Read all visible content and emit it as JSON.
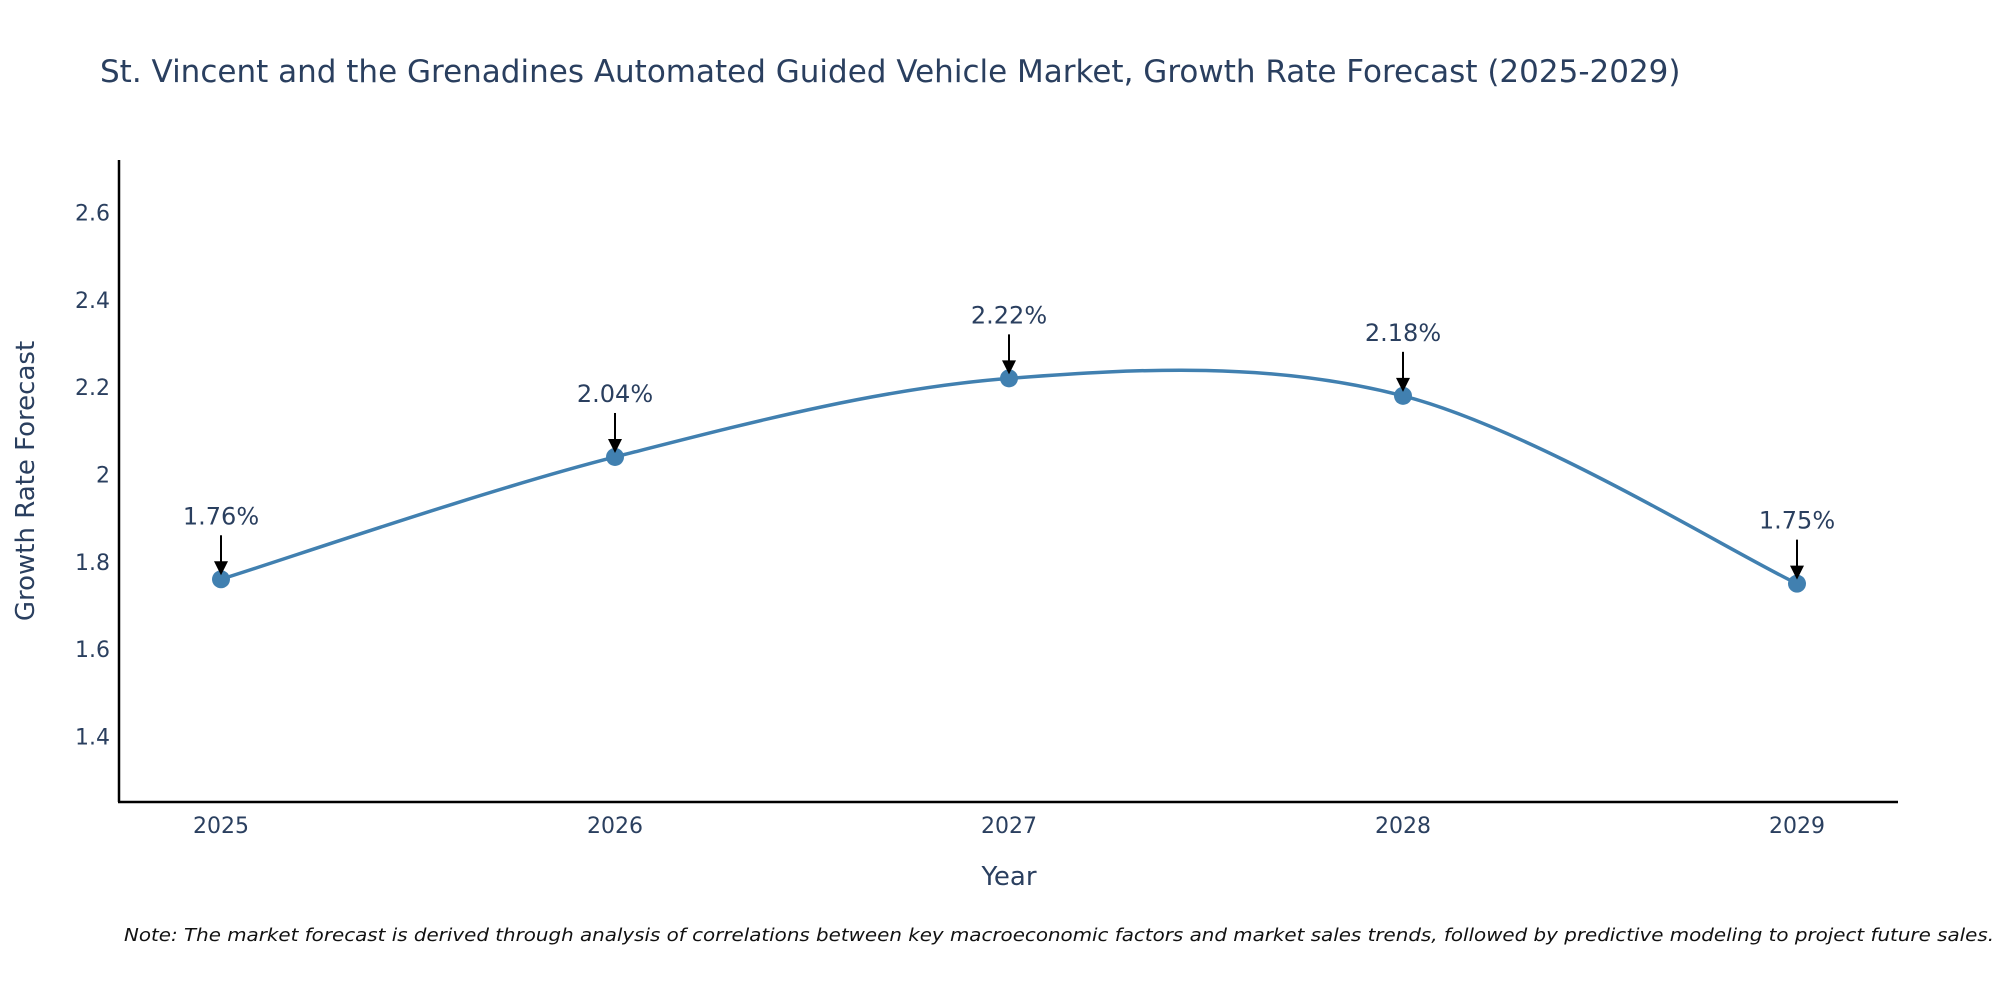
{
  "chart_data": {
    "type": "line",
    "title": "St. Vincent and the Grenadines Automated Guided Vehicle Market, Growth Rate Forecast (2025-2029)",
    "xlabel": "Year",
    "ylabel": "Growth Rate Forecast",
    "categories": [
      "2025",
      "2026",
      "2027",
      "2028",
      "2029"
    ],
    "series": [
      {
        "name": "Growth Rate Forecast",
        "values": [
          1.76,
          2.04,
          2.22,
          2.18,
          1.75
        ]
      }
    ],
    "data_labels": [
      "1.76%",
      "2.04%",
      "2.22%",
      "2.18%",
      "1.75%"
    ],
    "ylim": [
      1.25,
      2.72
    ],
    "yticks": [
      1.4,
      1.6,
      1.8,
      2,
      2.2,
      2.4,
      2.6
    ],
    "ytick_labels": [
      "1.4",
      "1.6",
      "1.8",
      "2",
      "2.2",
      "2.4",
      "2.6"
    ],
    "grid": false,
    "line_color": "#4180b0",
    "note": "Note: The market forecast is derived through analysis of correlations between key macroeconomic factors and market sales trends, followed by predictive modeling to project future sales."
  }
}
